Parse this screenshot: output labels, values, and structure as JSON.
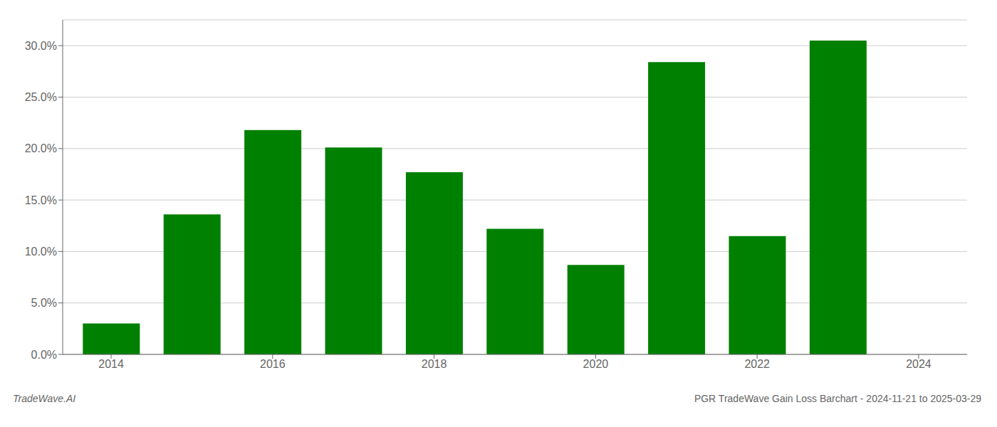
{
  "chart_data": {
    "type": "bar",
    "x": [
      2014,
      2015,
      2016,
      2017,
      2018,
      2019,
      2020,
      2021,
      2022,
      2023
    ],
    "values": [
      0.03,
      0.136,
      0.218,
      0.201,
      0.177,
      0.122,
      0.087,
      0.284,
      0.115,
      0.305
    ],
    "color": "#008000",
    "xlim": [
      2013.4,
      2024.6
    ],
    "xticks": [
      2014,
      2016,
      2018,
      2020,
      2022,
      2024
    ],
    "ylim": [
      0,
      0.325
    ],
    "yticks": [
      {
        "value": 0.0,
        "label": "0.0%"
      },
      {
        "value": 0.05,
        "label": "5.0%"
      },
      {
        "value": 0.1,
        "label": "10.0%"
      },
      {
        "value": 0.15,
        "label": "15.0%"
      },
      {
        "value": 0.2,
        "label": "20.0%"
      },
      {
        "value": 0.25,
        "label": "25.0%"
      },
      {
        "value": 0.3,
        "label": "30.0%"
      }
    ],
    "grid": true,
    "annotations": [
      "TradeWave.AI",
      "PGR TradeWave Gain Loss Barchart - 2024-11-21 to 2025-03-29"
    ]
  }
}
